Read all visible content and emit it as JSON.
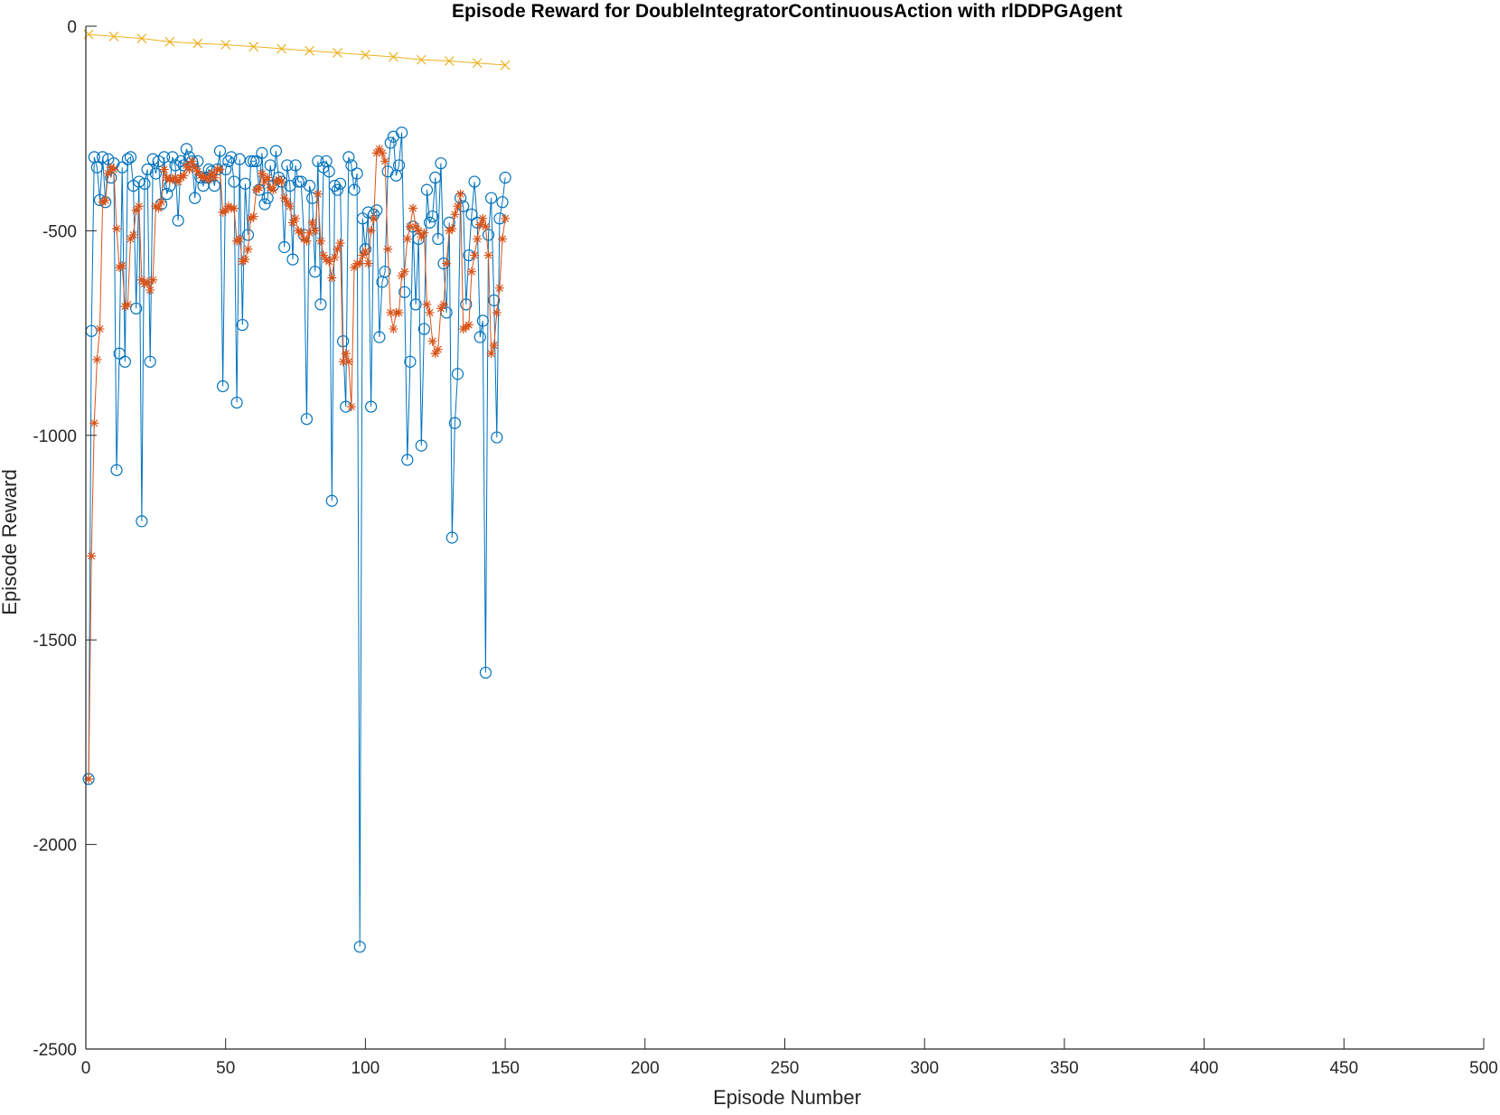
{
  "chart_data": {
    "type": "line",
    "title": "Episode Reward for DoubleIntegratorContinuousAction with rlDDPGAgent",
    "xlabel": "Episode Number",
    "ylabel": "Episode Reward",
    "xlim": [
      0,
      500
    ],
    "ylim": [
      -2500,
      0
    ],
    "xticks": [
      0,
      50,
      100,
      150,
      200,
      250,
      300,
      350,
      400,
      450,
      500
    ],
    "yticks": [
      -2500,
      -2000,
      -1500,
      -1000,
      -500,
      0
    ],
    "grid": false,
    "legend": "none",
    "colors": {
      "episode_reward": "#0072BD",
      "average_reward": "#D95319",
      "episode_q0": "#EDB120",
      "axes": "#262626"
    },
    "episode_reward": [
      [
        1,
        -1840
      ],
      [
        2,
        -745
      ],
      [
        3,
        -320
      ],
      [
        4,
        -345
      ],
      [
        5,
        -425
      ],
      [
        6,
        -320
      ],
      [
        7,
        -430
      ],
      [
        8,
        -325
      ],
      [
        9,
        -370
      ],
      [
        10,
        -335
      ],
      [
        11,
        -1085
      ],
      [
        12,
        -800
      ],
      [
        13,
        -345
      ],
      [
        14,
        -820
      ],
      [
        15,
        -325
      ],
      [
        16,
        -320
      ],
      [
        17,
        -390
      ],
      [
        18,
        -690
      ],
      [
        19,
        -380
      ],
      [
        20,
        -1210
      ],
      [
        21,
        -385
      ],
      [
        22,
        -350
      ],
      [
        23,
        -820
      ],
      [
        24,
        -325
      ],
      [
        25,
        -360
      ],
      [
        26,
        -330
      ],
      [
        27,
        -435
      ],
      [
        28,
        -320
      ],
      [
        29,
        -410
      ],
      [
        30,
        -390
      ],
      [
        31,
        -320
      ],
      [
        32,
        -340
      ],
      [
        33,
        -475
      ],
      [
        34,
        -330
      ],
      [
        35,
        -340
      ],
      [
        36,
        -300
      ],
      [
        37,
        -320
      ],
      [
        38,
        -330
      ],
      [
        39,
        -420
      ],
      [
        40,
        -330
      ],
      [
        41,
        -370
      ],
      [
        42,
        -390
      ],
      [
        43,
        -370
      ],
      [
        44,
        -350
      ],
      [
        45,
        -355
      ],
      [
        46,
        -390
      ],
      [
        47,
        -350
      ],
      [
        48,
        -305
      ],
      [
        49,
        -880
      ],
      [
        50,
        -350
      ],
      [
        51,
        -330
      ],
      [
        52,
        -320
      ],
      [
        53,
        -380
      ],
      [
        54,
        -920
      ],
      [
        55,
        -325
      ],
      [
        56,
        -730
      ],
      [
        57,
        -385
      ],
      [
        58,
        -510
      ],
      [
        59,
        -330
      ],
      [
        60,
        -330
      ],
      [
        61,
        -330
      ],
      [
        62,
        -400
      ],
      [
        63,
        -310
      ],
      [
        64,
        -435
      ],
      [
        65,
        -420
      ],
      [
        66,
        -340
      ],
      [
        67,
        -390
      ],
      [
        68,
        -305
      ],
      [
        69,
        -370
      ],
      [
        70,
        -380
      ],
      [
        71,
        -540
      ],
      [
        72,
        -340
      ],
      [
        73,
        -390
      ],
      [
        74,
        -570
      ],
      [
        75,
        -340
      ],
      [
        76,
        -380
      ],
      [
        77,
        -380
      ],
      [
        78,
        -510
      ],
      [
        79,
        -960
      ],
      [
        80,
        -390
      ],
      [
        81,
        -420
      ],
      [
        82,
        -600
      ],
      [
        83,
        -330
      ],
      [
        84,
        -680
      ],
      [
        85,
        -345
      ],
      [
        86,
        -330
      ],
      [
        87,
        -355
      ],
      [
        88,
        -1160
      ],
      [
        89,
        -390
      ],
      [
        90,
        -400
      ],
      [
        91,
        -385
      ],
      [
        92,
        -770
      ],
      [
        93,
        -930
      ],
      [
        94,
        -320
      ],
      [
        95,
        -340
      ],
      [
        96,
        -400
      ],
      [
        97,
        -360
      ],
      [
        98,
        -2250
      ],
      [
        99,
        -470
      ],
      [
        100,
        -545
      ],
      [
        101,
        -455
      ],
      [
        102,
        -930
      ],
      [
        103,
        -460
      ],
      [
        104,
        -450
      ],
      [
        105,
        -760
      ],
      [
        106,
        -625
      ],
      [
        107,
        -600
      ],
      [
        108,
        -355
      ],
      [
        109,
        -285
      ],
      [
        110,
        -270
      ],
      [
        111,
        -365
      ],
      [
        112,
        -340
      ],
      [
        113,
        -260
      ],
      [
        114,
        -650
      ],
      [
        115,
        -1060
      ],
      [
        116,
        -820
      ],
      [
        117,
        -490
      ],
      [
        118,
        -680
      ],
      [
        119,
        -520
      ],
      [
        120,
        -1025
      ],
      [
        121,
        -740
      ],
      [
        122,
        -400
      ],
      [
        123,
        -480
      ],
      [
        124,
        -465
      ],
      [
        125,
        -370
      ],
      [
        126,
        -520
      ],
      [
        127,
        -335
      ],
      [
        128,
        -580
      ],
      [
        129,
        -700
      ],
      [
        130,
        -480
      ],
      [
        131,
        -1250
      ],
      [
        132,
        -970
      ],
      [
        133,
        -850
      ],
      [
        134,
        -420
      ],
      [
        135,
        -440
      ],
      [
        136,
        -680
      ],
      [
        137,
        -560
      ],
      [
        138,
        -460
      ],
      [
        139,
        -380
      ],
      [
        140,
        -480
      ],
      [
        141,
        -760
      ],
      [
        142,
        -720
      ],
      [
        143,
        -1580
      ],
      [
        144,
        -510
      ],
      [
        145,
        -420
      ],
      [
        146,
        -670
      ],
      [
        147,
        -1005
      ],
      [
        148,
        -470
      ],
      [
        149,
        -430
      ],
      [
        150,
        -370
      ]
    ],
    "average_reward": [
      [
        1,
        -1840
      ],
      [
        2,
        -1295
      ],
      [
        3,
        -970
      ],
      [
        4,
        -815
      ],
      [
        5,
        -740
      ],
      [
        6,
        -430
      ],
      [
        7,
        -425
      ],
      [
        8,
        -360
      ],
      [
        9,
        -345
      ],
      [
        10,
        -350
      ],
      [
        11,
        -495
      ],
      [
        12,
        -590
      ],
      [
        13,
        -585
      ],
      [
        14,
        -685
      ],
      [
        15,
        -680
      ],
      [
        16,
        -520
      ],
      [
        17,
        -510
      ],
      [
        18,
        -450
      ],
      [
        19,
        -440
      ],
      [
        20,
        -620
      ],
      [
        21,
        -630
      ],
      [
        22,
        -625
      ],
      [
        23,
        -645
      ],
      [
        24,
        -620
      ],
      [
        25,
        -440
      ],
      [
        26,
        -445
      ],
      [
        27,
        -430
      ],
      [
        28,
        -350
      ],
      [
        29,
        -370
      ],
      [
        30,
        -375
      ],
      [
        31,
        -375
      ],
      [
        32,
        -370
      ],
      [
        33,
        -380
      ],
      [
        34,
        -370
      ],
      [
        35,
        -365
      ],
      [
        36,
        -340
      ],
      [
        37,
        -350
      ],
      [
        38,
        -330
      ],
      [
        39,
        -345
      ],
      [
        40,
        -355
      ],
      [
        41,
        -365
      ],
      [
        42,
        -370
      ],
      [
        43,
        -370
      ],
      [
        44,
        -375
      ],
      [
        45,
        -360
      ],
      [
        46,
        -370
      ],
      [
        47,
        -350
      ],
      [
        48,
        -350
      ],
      [
        49,
        -455
      ],
      [
        50,
        -450
      ],
      [
        51,
        -440
      ],
      [
        52,
        -445
      ],
      [
        53,
        -445
      ],
      [
        54,
        -525
      ],
      [
        55,
        -520
      ],
      [
        56,
        -575
      ],
      [
        57,
        -570
      ],
      [
        58,
        -545
      ],
      [
        59,
        -470
      ],
      [
        60,
        -465
      ],
      [
        61,
        -400
      ],
      [
        62,
        -395
      ],
      [
        63,
        -360
      ],
      [
        64,
        -380
      ],
      [
        65,
        -370
      ],
      [
        66,
        -395
      ],
      [
        67,
        -400
      ],
      [
        68,
        -380
      ],
      [
        69,
        -375
      ],
      [
        70,
        -380
      ],
      [
        71,
        -420
      ],
      [
        72,
        -430
      ],
      [
        73,
        -440
      ],
      [
        74,
        -480
      ],
      [
        75,
        -470
      ],
      [
        76,
        -500
      ],
      [
        77,
        -505
      ],
      [
        78,
        -520
      ],
      [
        79,
        -525
      ],
      [
        80,
        -505
      ],
      [
        81,
        -480
      ],
      [
        82,
        -500
      ],
      [
        83,
        -410
      ],
      [
        84,
        -525
      ],
      [
        85,
        -560
      ],
      [
        86,
        -570
      ],
      [
        87,
        -575
      ],
      [
        88,
        -615
      ],
      [
        89,
        -565
      ],
      [
        90,
        -545
      ],
      [
        91,
        -530
      ],
      [
        92,
        -820
      ],
      [
        93,
        -800
      ],
      [
        94,
        -820
      ],
      [
        95,
        -930
      ],
      [
        96,
        -590
      ],
      [
        97,
        -580
      ],
      [
        98,
        -580
      ],
      [
        99,
        -560
      ],
      [
        100,
        -550
      ],
      [
        101,
        -580
      ],
      [
        102,
        -500
      ],
      [
        103,
        -470
      ],
      [
        104,
        -310
      ],
      [
        105,
        -300
      ],
      [
        106,
        -310
      ],
      [
        107,
        -330
      ],
      [
        108,
        -545
      ],
      [
        109,
        -700
      ],
      [
        110,
        -740
      ],
      [
        111,
        -700
      ],
      [
        112,
        -700
      ],
      [
        113,
        -610
      ],
      [
        114,
        -600
      ],
      [
        115,
        -520
      ],
      [
        116,
        -490
      ],
      [
        117,
        -445
      ],
      [
        118,
        -490
      ],
      [
        119,
        -500
      ],
      [
        120,
        -515
      ],
      [
        121,
        -505
      ],
      [
        122,
        -680
      ],
      [
        123,
        -700
      ],
      [
        124,
        -770
      ],
      [
        125,
        -800
      ],
      [
        126,
        -790
      ],
      [
        127,
        -690
      ],
      [
        128,
        -680
      ],
      [
        129,
        -580
      ],
      [
        130,
        -500
      ],
      [
        131,
        -495
      ],
      [
        132,
        -460
      ],
      [
        133,
        -440
      ],
      [
        134,
        -410
      ],
      [
        135,
        -740
      ],
      [
        136,
        -735
      ],
      [
        137,
        -730
      ],
      [
        138,
        -600
      ],
      [
        139,
        -560
      ],
      [
        140,
        -520
      ],
      [
        141,
        -485
      ],
      [
        142,
        -470
      ],
      [
        143,
        -490
      ],
      [
        144,
        -560
      ],
      [
        145,
        -800
      ],
      [
        146,
        -780
      ],
      [
        147,
        -700
      ],
      [
        148,
        -640
      ],
      [
        149,
        -520
      ],
      [
        150,
        -470
      ]
    ],
    "episode_q0": [
      [
        1,
        -20
      ],
      [
        10,
        -25
      ],
      [
        20,
        -30
      ],
      [
        30,
        -38
      ],
      [
        40,
        -42
      ],
      [
        50,
        -45
      ],
      [
        60,
        -50
      ],
      [
        70,
        -55
      ],
      [
        80,
        -60
      ],
      [
        90,
        -65
      ],
      [
        100,
        -70
      ],
      [
        110,
        -75
      ],
      [
        120,
        -82
      ],
      [
        130,
        -85
      ],
      [
        140,
        -90
      ],
      [
        150,
        -95
      ]
    ]
  }
}
